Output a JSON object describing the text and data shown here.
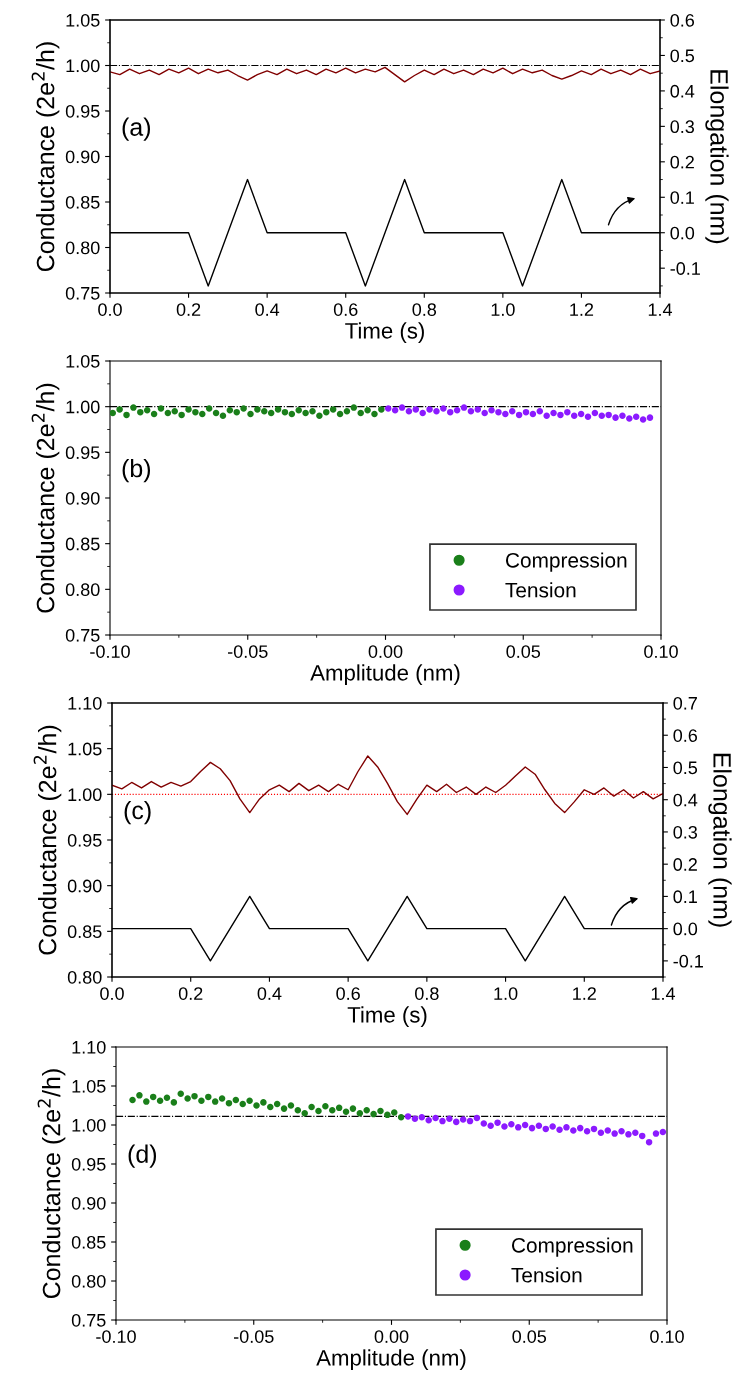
{
  "chart_data": [
    {
      "type": "line",
      "xlabel": "Time (s)",
      "ylabel": "Conductance (2e$^{2}$/h)",
      "y2label": "Elongation (nm)",
      "annotations": [
        "(a)"
      ],
      "xlim": [
        0,
        1.4
      ],
      "xticks": [
        {
          "value": 0,
          "label": "0.0"
        },
        0.2,
        0.4,
        0.6,
        0.8,
        {
          "value": 1,
          "label": "1.0"
        },
        1.2,
        1.4
      ],
      "ylim": [
        0.75,
        1.05
      ],
      "yticks": [
        0.75,
        {
          "value": 0.8,
          "label": "0.80"
        },
        0.85,
        {
          "value": 0.9,
          "label": "0.90"
        },
        0.95,
        {
          "value": 1,
          "label": "1.00"
        },
        1.05
      ],
      "y2lim": [
        -0.17,
        0.6
      ],
      "y2ticks": [
        -0.1,
        {
          "value": 0,
          "label": "0.0"
        },
        0.1,
        0.2,
        0.3,
        0.4,
        0.5,
        0.6
      ],
      "grid": false,
      "legend": false,
      "ref_lines": [
        {
          "axis": "y",
          "value": 1.0,
          "color": "#000000",
          "line_style": "dashdot"
        }
      ],
      "series": [
        {
          "color": "#800000",
          "x": [
            0,
            0.025,
            0.05,
            0.075,
            0.1,
            0.125,
            0.15,
            0.175,
            0.2,
            0.225,
            0.25,
            0.275,
            0.3,
            0.325,
            0.35,
            0.375,
            0.4,
            0.425,
            0.45,
            0.475,
            0.5,
            0.525,
            0.55,
            0.575,
            0.6,
            0.625,
            0.65,
            0.675,
            0.7,
            0.725,
            0.75,
            0.775,
            0.8,
            0.825,
            0.85,
            0.875,
            0.9,
            0.925,
            0.95,
            0.975,
            1.0,
            1.025,
            1.05,
            1.075,
            1.1,
            1.125,
            1.15,
            1.175,
            1.2,
            1.225,
            1.25,
            1.275,
            1.3,
            1.325,
            1.35,
            1.375,
            1.4
          ],
          "values": [
            0.993,
            0.99,
            0.996,
            0.991,
            0.995,
            0.99,
            0.996,
            0.992,
            0.997,
            0.991,
            0.996,
            0.992,
            0.995,
            0.989,
            0.984,
            0.99,
            0.994,
            0.99,
            0.996,
            0.991,
            0.995,
            0.99,
            0.996,
            0.992,
            0.997,
            0.992,
            0.996,
            0.993,
            0.998,
            0.99,
            0.982,
            0.989,
            0.995,
            0.99,
            0.996,
            0.991,
            0.995,
            0.99,
            0.996,
            0.992,
            0.997,
            0.991,
            0.996,
            0.992,
            0.995,
            0.989,
            0.985,
            0.989,
            0.994,
            0.99,
            0.996,
            0.991,
            0.995,
            0.99,
            0.996,
            0.991,
            0.994
          ]
        },
        {
          "color": "#000000",
          "axis": "y2",
          "x": [
            0,
            0.2,
            0.25,
            0.35,
            0.4,
            0.6,
            0.65,
            0.75,
            0.8,
            1.0,
            1.05,
            1.15,
            1.2,
            1.4
          ],
          "values": [
            0,
            0,
            -0.15,
            0.15,
            0,
            0,
            -0.15,
            0.15,
            0,
            0,
            -0.15,
            0.15,
            0,
            0
          ]
        }
      ]
    },
    {
      "type": "scatter",
      "xlabel": "Amplitude (nm)",
      "ylabel": "Conductance (2e$^{2}$/h)",
      "annotations": [
        "(b)"
      ],
      "xlim": [
        -0.1,
        0.1
      ],
      "xticks": [
        {
          "value": -0.1,
          "label": "-0.10"
        },
        {
          "value": -0.05,
          "label": "-0.05"
        },
        {
          "value": 0,
          "label": "0.00"
        },
        0.05,
        {
          "value": 0.1,
          "label": "0.10"
        }
      ],
      "ylim": [
        0.75,
        1.05
      ],
      "yticks": [
        0.75,
        {
          "value": 0.8,
          "label": "0.80"
        },
        0.85,
        {
          "value": 0.9,
          "label": "0.90"
        },
        0.95,
        {
          "value": 1,
          "label": "1.00"
        },
        1.05
      ],
      "grid": false,
      "legend": "bottom right",
      "marker": "circle",
      "ref_lines": [
        {
          "axis": "y",
          "value": 1.0,
          "color": "#000000",
          "line_style": "dashdot"
        }
      ],
      "series": [
        {
          "name": "Compression",
          "color": "#1a7f1a",
          "x": [
            -0.099,
            -0.0965,
            -0.094,
            -0.0915,
            -0.089,
            -0.0865,
            -0.084,
            -0.0815,
            -0.079,
            -0.0765,
            -0.074,
            -0.0715,
            -0.069,
            -0.0665,
            -0.064,
            -0.0615,
            -0.059,
            -0.0565,
            -0.054,
            -0.0515,
            -0.049,
            -0.0465,
            -0.044,
            -0.0415,
            -0.039,
            -0.0365,
            -0.034,
            -0.0315,
            -0.029,
            -0.0265,
            -0.024,
            -0.0215,
            -0.019,
            -0.0165,
            -0.014,
            -0.0115,
            -0.009,
            -0.0065,
            -0.004,
            -0.0015
          ],
          "values": [
            0.993,
            0.997,
            0.991,
            0.999,
            0.994,
            0.996,
            0.992,
            0.998,
            0.993,
            0.995,
            0.991,
            0.997,
            0.994,
            0.992,
            0.998,
            0.993,
            0.99,
            0.996,
            0.994,
            0.998,
            0.992,
            0.997,
            0.995,
            0.993,
            0.997,
            0.994,
            0.992,
            0.996,
            0.993,
            0.995,
            0.99,
            0.994,
            0.997,
            0.992,
            0.995,
            0.999,
            0.993,
            0.996,
            0.992,
            0.997
          ]
        },
        {
          "name": "Tension",
          "color": "#8b1aff",
          "x": [
            0.001,
            0.0035,
            0.006,
            0.0085,
            0.011,
            0.0135,
            0.016,
            0.0185,
            0.021,
            0.0235,
            0.026,
            0.0285,
            0.031,
            0.0335,
            0.036,
            0.0385,
            0.041,
            0.0435,
            0.046,
            0.0485,
            0.051,
            0.0535,
            0.056,
            0.0585,
            0.061,
            0.0635,
            0.066,
            0.0685,
            0.071,
            0.0735,
            0.076,
            0.0785,
            0.081,
            0.0835,
            0.086,
            0.0885,
            0.091,
            0.0935,
            0.096
          ],
          "values": [
            0.998,
            0.996,
            0.999,
            0.995,
            0.997,
            0.993,
            0.997,
            0.995,
            0.998,
            0.994,
            0.996,
            0.999,
            0.995,
            0.997,
            0.993,
            0.996,
            0.994,
            0.992,
            0.995,
            0.991,
            0.994,
            0.992,
            0.995,
            0.99,
            0.993,
            0.991,
            0.994,
            0.99,
            0.992,
            0.989,
            0.993,
            0.99,
            0.991,
            0.988,
            0.99,
            0.987,
            0.989,
            0.986,
            0.988
          ]
        }
      ]
    },
    {
      "type": "line",
      "xlabel": "Time (s)",
      "ylabel": "Conductance (2e$^{2}$/h)",
      "y2label": "Elongation (nm)",
      "annotations": [
        "(c)"
      ],
      "xlim": [
        0,
        1.4
      ],
      "xticks": [
        {
          "value": 0,
          "label": "0.0"
        },
        0.2,
        0.4,
        0.6,
        0.8,
        {
          "value": 1,
          "label": "1.0"
        },
        1.2,
        1.4
      ],
      "ylim": [
        0.8,
        1.1
      ],
      "yticks": [
        {
          "value": 0.8,
          "label": "0.80"
        },
        0.85,
        {
          "value": 0.9,
          "label": "0.90"
        },
        0.95,
        {
          "value": 1,
          "label": "1.00"
        },
        1.05,
        {
          "value": 1.1,
          "label": "1.10"
        }
      ],
      "y2lim": [
        -0.15,
        0.7
      ],
      "y2ticks": [
        -0.1,
        {
          "value": 0,
          "label": "0.0"
        },
        0.1,
        0.2,
        0.3,
        0.4,
        0.5,
        0.6,
        0.7
      ],
      "grid": false,
      "legend": false,
      "ref_lines": [
        {
          "axis": "y",
          "value": 1.0,
          "color": "#ff0000",
          "line_style": "dotted"
        }
      ],
      "series": [
        {
          "color": "#800000",
          "x": [
            0,
            0.025,
            0.05,
            0.075,
            0.1,
            0.125,
            0.15,
            0.175,
            0.2,
            0.225,
            0.25,
            0.275,
            0.3,
            0.325,
            0.35,
            0.375,
            0.4,
            0.425,
            0.45,
            0.475,
            0.5,
            0.525,
            0.55,
            0.575,
            0.6,
            0.625,
            0.65,
            0.675,
            0.7,
            0.725,
            0.75,
            0.775,
            0.8,
            0.825,
            0.85,
            0.875,
            0.9,
            0.925,
            0.95,
            0.975,
            1.0,
            1.025,
            1.05,
            1.075,
            1.1,
            1.125,
            1.15,
            1.175,
            1.2,
            1.225,
            1.25,
            1.275,
            1.3,
            1.325,
            1.35,
            1.375,
            1.4
          ],
          "values": [
            1.01,
            1.006,
            1.013,
            1.007,
            1.014,
            1.008,
            1.013,
            1.009,
            1.014,
            1.025,
            1.035,
            1.028,
            1.015,
            0.995,
            0.98,
            0.995,
            1.005,
            1.01,
            1.003,
            1.012,
            1.004,
            1.01,
            1.003,
            1.011,
            1.005,
            1.025,
            1.042,
            1.03,
            1.012,
            0.992,
            0.978,
            0.995,
            1.01,
            1.003,
            1.011,
            1.002,
            1.008,
            1.0,
            1.008,
            1.002,
            1.01,
            1.02,
            1.03,
            1.022,
            1.005,
            0.99,
            0.98,
            0.992,
            1.005,
            1.0,
            1.007,
            0.998,
            1.005,
            0.996,
            1.003,
            0.995,
            1.001
          ]
        },
        {
          "color": "#000000",
          "axis": "y2",
          "x": [
            0,
            0.2,
            0.25,
            0.35,
            0.4,
            0.6,
            0.65,
            0.75,
            0.8,
            1.0,
            1.05,
            1.15,
            1.2,
            1.4
          ],
          "values": [
            0,
            0,
            -0.1,
            0.1,
            0,
            0,
            -0.1,
            0.1,
            0,
            0,
            -0.1,
            0.1,
            0,
            0
          ]
        }
      ]
    },
    {
      "type": "scatter",
      "xlabel": "Amplitude (nm)",
      "ylabel": "Conductance (2e$^{2}$/h)",
      "annotations": [
        "(d)"
      ],
      "xlim": [
        -0.1,
        0.1
      ],
      "xticks": [
        {
          "value": -0.1,
          "label": "-0.10"
        },
        {
          "value": -0.05,
          "label": "-0.05"
        },
        {
          "value": 0,
          "label": "0.00"
        },
        0.05,
        {
          "value": 0.1,
          "label": "0.10"
        }
      ],
      "ylim": [
        0.75,
        1.1
      ],
      "yticks": [
        0.75,
        {
          "value": 0.8,
          "label": "0.80"
        },
        0.85,
        {
          "value": 0.9,
          "label": "0.90"
        },
        0.95,
        {
          "value": 1,
          "label": "1.00"
        },
        1.05,
        {
          "value": 1.1,
          "label": "1.10"
        }
      ],
      "grid": false,
      "legend": "bottom right",
      "marker": "circle",
      "ref_lines": [
        {
          "axis": "y",
          "value": 1.011,
          "color": "#000000",
          "line_style": "dashdot"
        }
      ],
      "series": [
        {
          "name": "Compression",
          "color": "#1a7f1a",
          "x": [
            -0.094,
            -0.0915,
            -0.089,
            -0.0865,
            -0.084,
            -0.0815,
            -0.079,
            -0.0765,
            -0.074,
            -0.0715,
            -0.069,
            -0.0665,
            -0.064,
            -0.0615,
            -0.059,
            -0.0565,
            -0.054,
            -0.0515,
            -0.049,
            -0.0465,
            -0.044,
            -0.0415,
            -0.039,
            -0.0365,
            -0.034,
            -0.0315,
            -0.029,
            -0.0265,
            -0.024,
            -0.0215,
            -0.019,
            -0.0165,
            -0.014,
            -0.0115,
            -0.009,
            -0.0065,
            -0.004,
            -0.0015,
            0.001,
            0.0035
          ],
          "values": [
            1.032,
            1.038,
            1.03,
            1.036,
            1.031,
            1.035,
            1.029,
            1.04,
            1.034,
            1.037,
            1.031,
            1.036,
            1.03,
            1.034,
            1.028,
            1.032,
            1.027,
            1.031,
            1.025,
            1.029,
            1.023,
            1.027,
            1.021,
            1.025,
            1.019,
            1.015,
            1.023,
            1.018,
            1.024,
            1.019,
            1.022,
            1.017,
            1.021,
            1.015,
            1.019,
            1.014,
            1.018,
            1.013,
            1.016,
            1.01
          ]
        },
        {
          "name": "Tension",
          "color": "#8b1aff",
          "x": [
            0.006,
            0.0085,
            0.011,
            0.0135,
            0.016,
            0.0185,
            0.021,
            0.0235,
            0.026,
            0.0285,
            0.031,
            0.0335,
            0.036,
            0.0385,
            0.041,
            0.0435,
            0.046,
            0.0485,
            0.051,
            0.0535,
            0.056,
            0.0585,
            0.061,
            0.0635,
            0.066,
            0.0685,
            0.071,
            0.0735,
            0.076,
            0.0785,
            0.081,
            0.0835,
            0.086,
            0.0885,
            0.091,
            0.0935,
            0.096,
            0.0985
          ],
          "values": [
            1.011,
            1.008,
            1.01,
            1.006,
            1.009,
            1.005,
            1.008,
            1.004,
            1.007,
            1.005,
            1.009,
            1.002,
            0.999,
            1.003,
            0.998,
            1.001,
            0.997,
            1.0,
            0.996,
            0.999,
            0.995,
            0.998,
            0.994,
            0.997,
            0.993,
            0.996,
            0.992,
            0.995,
            0.99,
            0.993,
            0.989,
            0.992,
            0.988,
            0.99,
            0.986,
            0.978,
            0.989,
            0.991
          ]
        }
      ]
    }
  ]
}
